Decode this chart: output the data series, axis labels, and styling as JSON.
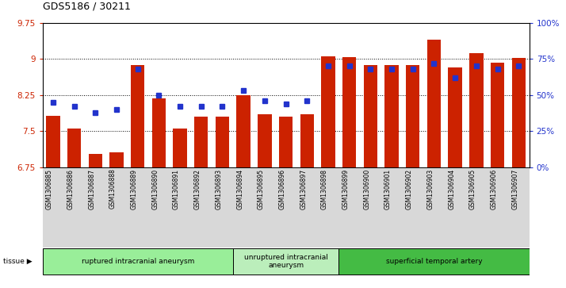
{
  "title": "GDS5186 / 30211",
  "samples": [
    "GSM1306885",
    "GSM1306886",
    "GSM1306887",
    "GSM1306888",
    "GSM1306889",
    "GSM1306890",
    "GSM1306891",
    "GSM1306892",
    "GSM1306893",
    "GSM1306894",
    "GSM1306895",
    "GSM1306896",
    "GSM1306897",
    "GSM1306898",
    "GSM1306899",
    "GSM1306900",
    "GSM1306901",
    "GSM1306902",
    "GSM1306903",
    "GSM1306904",
    "GSM1306905",
    "GSM1306906",
    "GSM1306907"
  ],
  "bar_values": [
    7.82,
    7.55,
    7.02,
    7.05,
    8.87,
    8.18,
    7.55,
    7.8,
    7.8,
    8.25,
    7.85,
    7.8,
    7.85,
    9.06,
    9.04,
    8.88,
    8.88,
    8.88,
    9.4,
    8.82,
    9.12,
    8.92,
    9.02
  ],
  "percentile_pct": [
    45,
    42,
    38,
    40,
    68,
    50,
    42,
    42,
    42,
    53,
    46,
    44,
    46,
    70,
    70,
    68,
    68,
    68,
    72,
    62,
    70,
    68,
    70
  ],
  "groups": [
    {
      "label": "ruptured intracranial aneurysm",
      "start": 0,
      "end": 8,
      "color": "#99ee99"
    },
    {
      "label": "unruptured intracranial\naneurysm",
      "start": 9,
      "end": 13,
      "color": "#bbeebb"
    },
    {
      "label": "superficial temporal artery",
      "start": 14,
      "end": 22,
      "color": "#44bb44"
    }
  ],
  "y_min": 6.75,
  "y_max": 9.75,
  "y_ticks": [
    6.75,
    7.5,
    8.25,
    9.0,
    9.75
  ],
  "y_tick_labels": [
    "6.75",
    "7.5",
    "8.25",
    "9",
    "9.75"
  ],
  "right_y_ticks": [
    0,
    25,
    50,
    75,
    100
  ],
  "bar_color": "#cc2200",
  "dot_color": "#2233cc",
  "xlabel_bg": "#d8d8d8"
}
